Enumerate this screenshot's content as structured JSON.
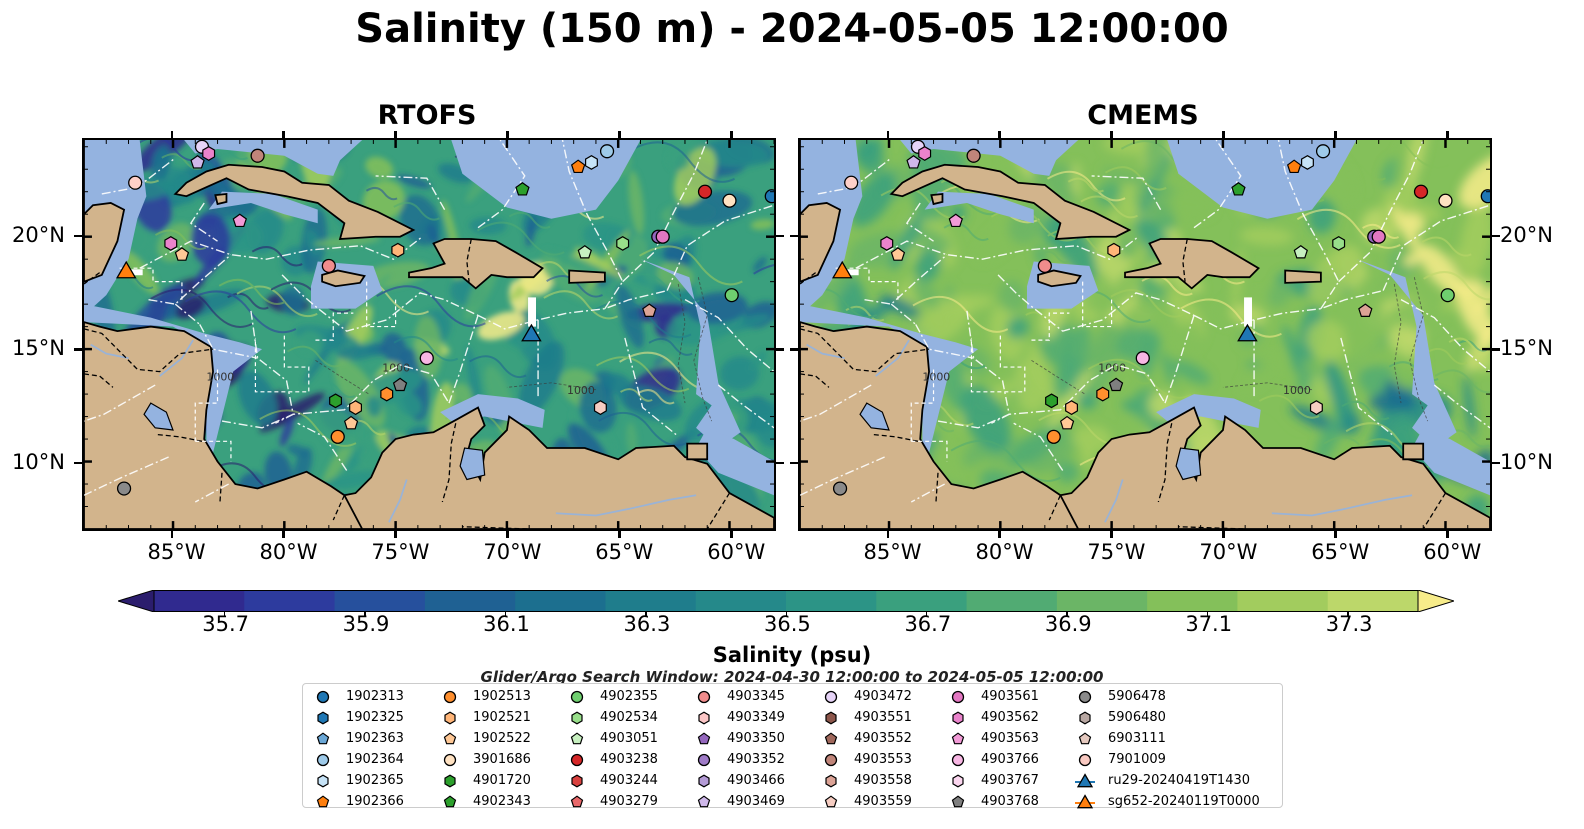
{
  "title": "Salinity (150 m) - 2024-05-05 12:00:00",
  "panels": [
    {
      "title": "RTOFS",
      "mode": "rtofs"
    },
    {
      "title": "CMEMS",
      "mode": "cmems"
    }
  ],
  "lon_ticks": [
    {
      "label": "85°W",
      "lon": -85
    },
    {
      "label": "80°W",
      "lon": -80
    },
    {
      "label": "75°W",
      "lon": -75
    },
    {
      "label": "70°W",
      "lon": -70
    },
    {
      "label": "65°W",
      "lon": -65
    },
    {
      "label": "60°W",
      "lon": -60
    }
  ],
  "lat_ticks": [
    {
      "label": "20°N",
      "lat": 20
    },
    {
      "label": "15°N",
      "lat": 15
    },
    {
      "label": "10°N",
      "lat": 10
    }
  ],
  "extent": {
    "lon": [
      -89,
      -58
    ],
    "lat": [
      7,
      24.3
    ]
  },
  "bathymetry_labels": [
    "1000",
    "1000",
    "1000"
  ],
  "colorbar": {
    "title": "Salinity (psu)",
    "min": 35.6,
    "max": 37.4,
    "step": 0.1,
    "extend": "both",
    "ticks": [
      "35.7",
      "35.9",
      "36.1",
      "36.3",
      "36.5",
      "36.7",
      "36.9",
      "37.1",
      "37.3"
    ],
    "colors": [
      "#2b1d6d",
      "#302a8f",
      "#2d3b9e",
      "#26509d",
      "#1f6193",
      "#1c6f8f",
      "#1f7d8c",
      "#25898a",
      "#2c9486",
      "#3aa07e",
      "#51ab73",
      "#6bb566",
      "#84c05a",
      "#a2cc5e",
      "#bcd76a",
      "#f7ec8a"
    ]
  },
  "search_window": "Glider/Argo Search Window: 2024-04-30 12:00:00 to 2024-05-05 12:00:00",
  "legend": [
    {
      "label": "1902313",
      "marker": "circle",
      "color": "#1f77b4"
    },
    {
      "label": "1902325",
      "marker": "hexagon",
      "color": "#1f77b4"
    },
    {
      "label": "1902363",
      "marker": "pentagon",
      "color": "#6aa7d6"
    },
    {
      "label": "1902364",
      "marker": "circle",
      "color": "#9ecae9"
    },
    {
      "label": "1902365",
      "marker": "hexagon",
      "color": "#c6e3f7"
    },
    {
      "label": "1902366",
      "marker": "pentagon",
      "color": "#ff7f0e"
    },
    {
      "label": "1902513",
      "marker": "circle",
      "color": "#ff8f2e"
    },
    {
      "label": "1902521",
      "marker": "hexagon",
      "color": "#ffb578"
    },
    {
      "label": "1902522",
      "marker": "pentagon",
      "color": "#ffc896"
    },
    {
      "label": "3901686",
      "marker": "circle",
      "color": "#ffe2c2"
    },
    {
      "label": "4901720",
      "marker": "hexagon",
      "color": "#2ca02c"
    },
    {
      "label": "4902343",
      "marker": "pentagon",
      "color": "#2ca02c"
    },
    {
      "label": "4902355",
      "marker": "circle",
      "color": "#6fcf6f"
    },
    {
      "label": "4902534",
      "marker": "hexagon",
      "color": "#98df8a"
    },
    {
      "label": "4903051",
      "marker": "pentagon",
      "color": "#c7f0c0"
    },
    {
      "label": "4903238",
      "marker": "circle",
      "color": "#d62728"
    },
    {
      "label": "4903244",
      "marker": "hexagon",
      "color": "#d9413f"
    },
    {
      "label": "4903279",
      "marker": "pentagon",
      "color": "#e8686a"
    },
    {
      "label": "4903345",
      "marker": "circle",
      "color": "#f08c8c"
    },
    {
      "label": "4903349",
      "marker": "hexagon",
      "color": "#fbc6c6"
    },
    {
      "label": "4903350",
      "marker": "pentagon",
      "color": "#9467bd"
    },
    {
      "label": "4903352",
      "marker": "circle",
      "color": "#9f7bc7"
    },
    {
      "label": "4903466",
      "marker": "hexagon",
      "color": "#b49bd6"
    },
    {
      "label": "4903469",
      "marker": "pentagon",
      "color": "#cfb8ea"
    },
    {
      "label": "4903472",
      "marker": "circle",
      "color": "#e6d3f7"
    },
    {
      "label": "4903551",
      "marker": "hexagon",
      "color": "#8c564b"
    },
    {
      "label": "4903552",
      "marker": "pentagon",
      "color": "#a0685c"
    },
    {
      "label": "4903553",
      "marker": "circle",
      "color": "#c0857a"
    },
    {
      "label": "4903558",
      "marker": "hexagon",
      "color": "#dca396"
    },
    {
      "label": "4903559",
      "marker": "pentagon",
      "color": "#f6cdc2"
    },
    {
      "label": "4903561",
      "marker": "circle",
      "color": "#e377c2"
    },
    {
      "label": "4903562",
      "marker": "hexagon",
      "color": "#ea83cc"
    },
    {
      "label": "4903563",
      "marker": "pentagon",
      "color": "#f29ad7"
    },
    {
      "label": "4903766",
      "marker": "circle",
      "color": "#f7b6e3"
    },
    {
      "label": "4903767",
      "marker": "hexagon",
      "color": "#fbd6ef"
    },
    {
      "label": "4903768",
      "marker": "pentagon",
      "color": "#7f7f7f"
    },
    {
      "label": "5906478",
      "marker": "circle",
      "color": "#8a8a8a"
    },
    {
      "label": "5906480",
      "marker": "hexagon",
      "color": "#b8a7a2"
    },
    {
      "label": "6903111",
      "marker": "pentagon",
      "color": "#e5c9bf"
    },
    {
      "label": "7901009",
      "marker": "circle",
      "color": "#f9c9c1"
    },
    {
      "label": "ru29-20240419T1430",
      "marker": "triangle-line",
      "color": "#1f77b4"
    },
    {
      "label": "sg652-20240119T0000",
      "marker": "triangle-line",
      "color": "#ff7f0e"
    }
  ],
  "floats": [
    {
      "lon": -86.7,
      "lat": 22.4,
      "marker": "circle",
      "color": "#ffd0c8"
    },
    {
      "lon": -83.7,
      "lat": 24.0,
      "marker": "circle",
      "color": "#e6d3f7"
    },
    {
      "lon": -83.4,
      "lat": 23.7,
      "marker": "hexagon",
      "color": "#ea83cc"
    },
    {
      "lon": -83.9,
      "lat": 23.3,
      "marker": "pentagon",
      "color": "#cfb8ea"
    },
    {
      "lon": -81.2,
      "lat": 23.6,
      "marker": "circle",
      "color": "#c0857a"
    },
    {
      "lon": -85.1,
      "lat": 19.7,
      "marker": "hexagon",
      "color": "#ea83cc"
    },
    {
      "lon": -82.0,
      "lat": 20.7,
      "marker": "pentagon",
      "color": "#f29ad7"
    },
    {
      "lon": -84.6,
      "lat": 19.2,
      "marker": "pentagon",
      "color": "#ffc896"
    },
    {
      "lon": -78.0,
      "lat": 18.7,
      "marker": "circle",
      "color": "#f08c8c"
    },
    {
      "lon": -74.9,
      "lat": 19.4,
      "marker": "hexagon",
      "color": "#ffb578"
    },
    {
      "lon": -65.5,
      "lat": 23.8,
      "marker": "circle",
      "color": "#9ecae9"
    },
    {
      "lon": -66.2,
      "lat": 23.3,
      "marker": "hexagon",
      "color": "#c6e3f7"
    },
    {
      "lon": -66.8,
      "lat": 23.1,
      "marker": "pentagon",
      "color": "#ff7f0e"
    },
    {
      "lon": -69.3,
      "lat": 22.1,
      "marker": "pentagon",
      "color": "#2ca02c"
    },
    {
      "lon": -61.1,
      "lat": 22.0,
      "marker": "circle",
      "color": "#d62728"
    },
    {
      "lon": -60.0,
      "lat": 21.6,
      "marker": "circle",
      "color": "#ffe2c2"
    },
    {
      "lon": -58.1,
      "lat": 21.8,
      "marker": "circle",
      "color": "#1f77b4"
    },
    {
      "lon": -66.5,
      "lat": 19.3,
      "marker": "pentagon",
      "color": "#c7f0c0"
    },
    {
      "lon": -64.8,
      "lat": 19.7,
      "marker": "hexagon",
      "color": "#98df8a"
    },
    {
      "lon": -63.2,
      "lat": 20.0,
      "marker": "circle",
      "color": "#9467bd"
    },
    {
      "lon": -63.0,
      "lat": 20.0,
      "marker": "circle",
      "color": "#e377c2"
    },
    {
      "lon": -59.9,
      "lat": 17.4,
      "marker": "circle",
      "color": "#6fcf6f"
    },
    {
      "lon": -63.6,
      "lat": 16.7,
      "marker": "pentagon",
      "color": "#dca396"
    },
    {
      "lon": -73.6,
      "lat": 14.6,
      "marker": "circle",
      "color": "#f7b6e3"
    },
    {
      "lon": -74.8,
      "lat": 13.4,
      "marker": "pentagon",
      "color": "#7f7f7f"
    },
    {
      "lon": -75.4,
      "lat": 13.0,
      "marker": "hexagon",
      "color": "#ff8f2e"
    },
    {
      "lon": -76.8,
      "lat": 12.4,
      "marker": "hexagon",
      "color": "#ffb578"
    },
    {
      "lon": -77.7,
      "lat": 12.7,
      "marker": "hexagon",
      "color": "#2ca02c"
    },
    {
      "lon": -77.0,
      "lat": 11.7,
      "marker": "pentagon",
      "color": "#ffc896"
    },
    {
      "lon": -77.6,
      "lat": 11.1,
      "marker": "circle",
      "color": "#ff8f2e"
    },
    {
      "lon": -65.8,
      "lat": 12.4,
      "marker": "hexagon",
      "color": "#f6cdc2"
    },
    {
      "lon": -87.2,
      "lat": 8.8,
      "marker": "circle",
      "color": "#8a8a8a"
    }
  ],
  "gliders": [
    {
      "lon": -68.9,
      "lat": 15.7,
      "color": "#1f77b4"
    },
    {
      "lon": -87.1,
      "lat": 18.5,
      "color": "#ff7f0e"
    }
  ]
}
